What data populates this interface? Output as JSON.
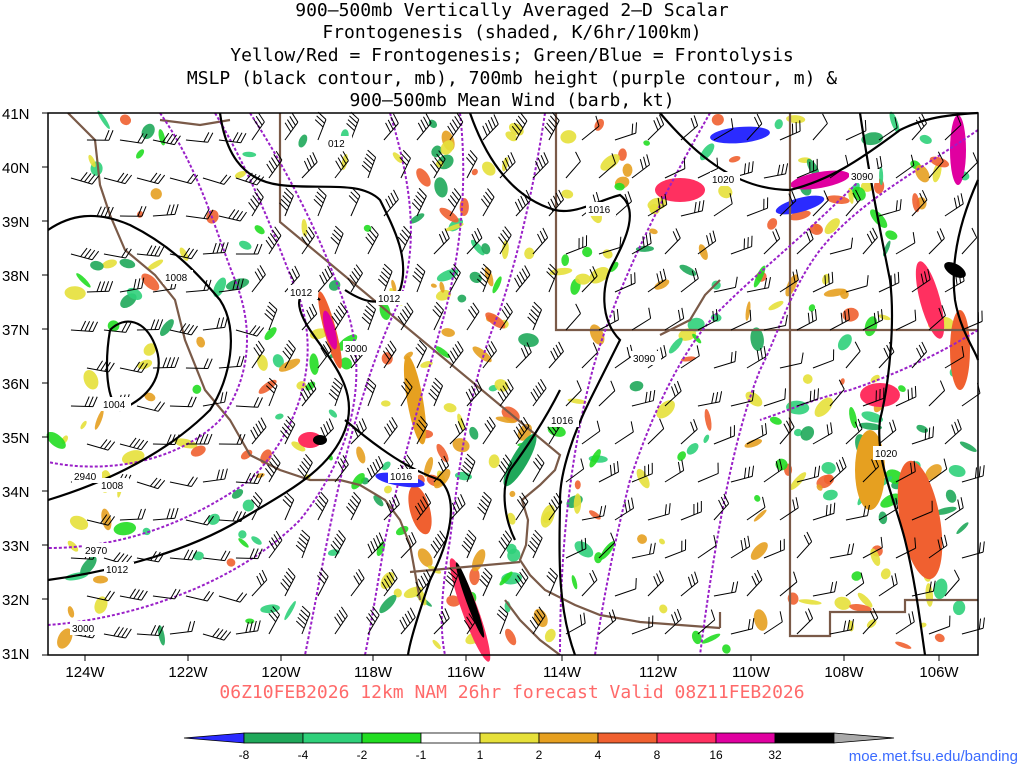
{
  "title": {
    "line1": "900–500mb Vertically Averaged 2–D Scalar",
    "line2": "Frontogenesis (shaded, K/6hr/100km)",
    "line3": "Yellow/Red = Frontogenesis;  Green/Blue = Frontolysis",
    "line4": "MSLP (black contour, mb), 700mb height (purple contour, m) &",
    "line5": "900–500mb Mean Wind (barb, kt)"
  },
  "valid_line": "06Z10FEB2026 12km NAM 26hr forecast Valid 08Z11FEB2026",
  "credit": "moe.met.fsu.edu/banding",
  "axes": {
    "lat_labels": [
      "41N",
      "40N",
      "39N",
      "38N",
      "37N",
      "36N",
      "35N",
      "34N",
      "33N",
      "32N",
      "31N"
    ],
    "lon_labels": [
      "124W",
      "122W",
      "120W",
      "118W",
      "116W",
      "114W",
      "112W",
      "110W",
      "108W",
      "106W"
    ]
  },
  "mslp_labels": [
    "012",
    "1012",
    "1012",
    "1008",
    "1004",
    "1008",
    "1012",
    "1016",
    "1016",
    "1016",
    "1020",
    "1020"
  ],
  "height_labels": [
    "3000",
    "2940",
    "2970",
    "3000",
    "3090",
    "3090"
  ],
  "colorbar": {
    "labels": [
      "-8",
      "-4",
      "-2",
      "-1",
      "1",
      "2",
      "4",
      "8",
      "16",
      "32"
    ],
    "colors": [
      "#2b2bff",
      "#1fa85a",
      "#2fd07a",
      "#22dd22",
      "#ffffff",
      "#e6e03a",
      "#e6a020",
      "#f06030",
      "#ff3060",
      "#e000a0",
      "#000000",
      "#aaaaaa"
    ]
  },
  "colors": {
    "state_borders": "#7a5a48",
    "mslp": "#000000",
    "height": "#9a20c8",
    "frame": "#000000"
  }
}
